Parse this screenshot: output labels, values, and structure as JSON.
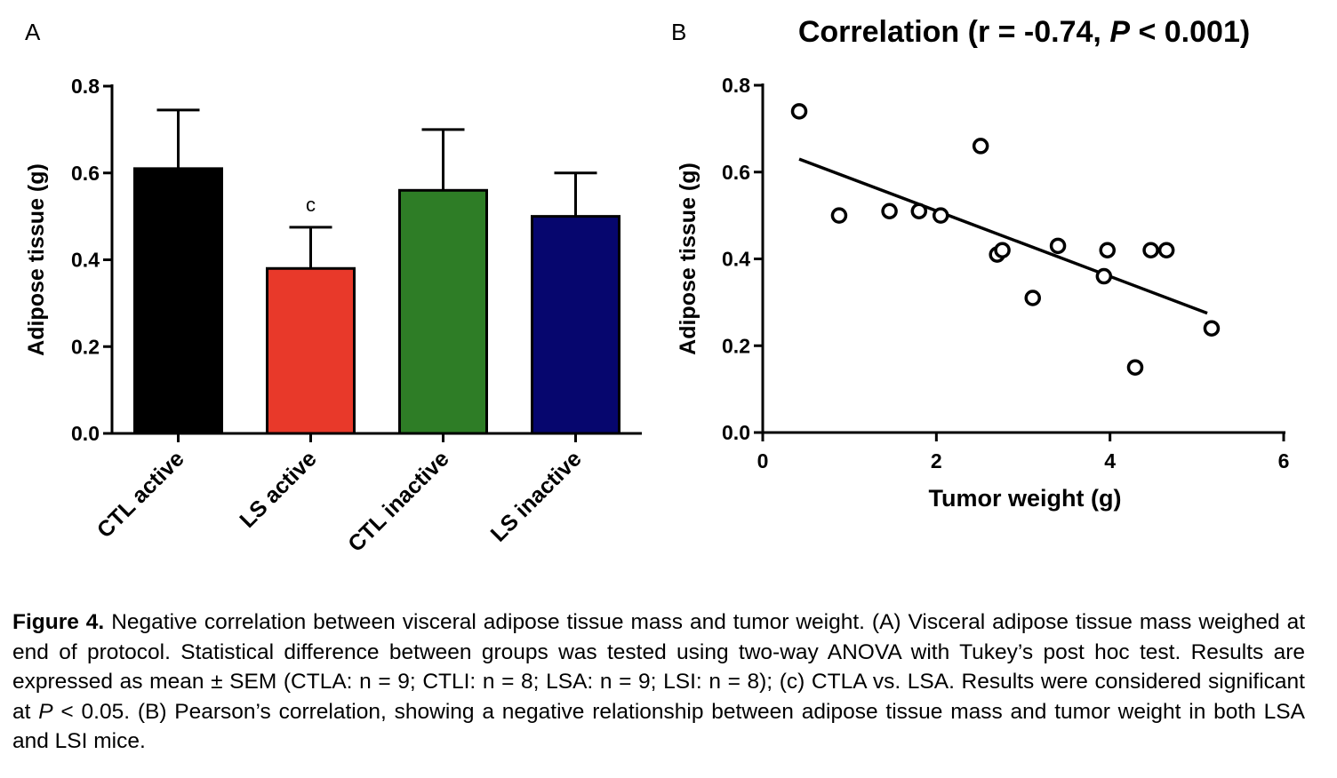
{
  "figure": {
    "panel_a_label": "A",
    "panel_b_label": "B",
    "caption_label": "Figure 4.",
    "caption_parts": [
      " Negative correlation between visceral adipose tissue mass and tumor weight. (A) Visceral adipose tis­sue mass weighed at end of protocol. Statistical difference between groups was tested using two-way ANOVA with Tukey’s post hoc test. Results are expressed as mean ± SEM (CTLA: n = 9; CTLI: n = 8; LSA: n = 9; LSI: n = 8); (c) CTLA vs. LSA. Results were considered significant at ",
      "P",
      " < 0.05. (B) Pearson’s correlation, showing a negative relationship between adipose tissue mass and tumor weight in both LSA and LSI mice."
    ]
  },
  "chart_data": [
    {
      "type": "bar",
      "panel": "A",
      "categories": [
        "CTL active",
        "LS active",
        "CTL inactive",
        "LS inactive"
      ],
      "values": [
        0.61,
        0.38,
        0.56,
        0.5
      ],
      "errors": [
        0.135,
        0.095,
        0.14,
        0.1
      ],
      "colors": [
        "#000000",
        "#e8392a",
        "#2e7d26",
        "#06066e"
      ],
      "annotations": [
        "",
        "c",
        "",
        ""
      ],
      "ylabel": "Adipose tissue (g)",
      "ylim": [
        0,
        0.8
      ],
      "yticks": [
        0.0,
        0.2,
        0.4,
        0.6,
        0.8
      ],
      "ytick_labels": [
        "0.0",
        "0.2",
        "0.4",
        "0.6",
        "0.8"
      ],
      "grid": false,
      "legend": "none"
    },
    {
      "type": "scatter",
      "panel": "B",
      "title_parts": [
        "Correlation (r = -0.74, ",
        "P",
        " < 0.001)"
      ],
      "xlabel": "Tumor weight (g)",
      "ylabel": "Adipose tissue (g)",
      "xlim": [
        0,
        6
      ],
      "ylim": [
        0,
        0.8
      ],
      "xticks": [
        0,
        2,
        4,
        6
      ],
      "xtick_labels": [
        "0",
        "2",
        "4",
        "6"
      ],
      "yticks": [
        0.0,
        0.2,
        0.4,
        0.6,
        0.8
      ],
      "ytick_labels": [
        "0.0",
        "0.2",
        "0.4",
        "0.6",
        "0.8"
      ],
      "points": [
        {
          "x": 0.42,
          "y": 0.74
        },
        {
          "x": 0.88,
          "y": 0.5
        },
        {
          "x": 1.46,
          "y": 0.51
        },
        {
          "x": 1.8,
          "y": 0.51
        },
        {
          "x": 2.05,
          "y": 0.5
        },
        {
          "x": 2.51,
          "y": 0.66
        },
        {
          "x": 2.7,
          "y": 0.41
        },
        {
          "x": 2.76,
          "y": 0.42
        },
        {
          "x": 3.11,
          "y": 0.31
        },
        {
          "x": 3.4,
          "y": 0.43
        },
        {
          "x": 3.93,
          "y": 0.36
        },
        {
          "x": 3.97,
          "y": 0.42
        },
        {
          "x": 4.29,
          "y": 0.15
        },
        {
          "x": 4.47,
          "y": 0.42
        },
        {
          "x": 4.65,
          "y": 0.42
        },
        {
          "x": 5.17,
          "y": 0.24
        }
      ],
      "fit_line": {
        "x": [
          0.42,
          5.12
        ],
        "y": [
          0.63,
          0.275
        ]
      },
      "grid": false,
      "legend": "none"
    }
  ]
}
